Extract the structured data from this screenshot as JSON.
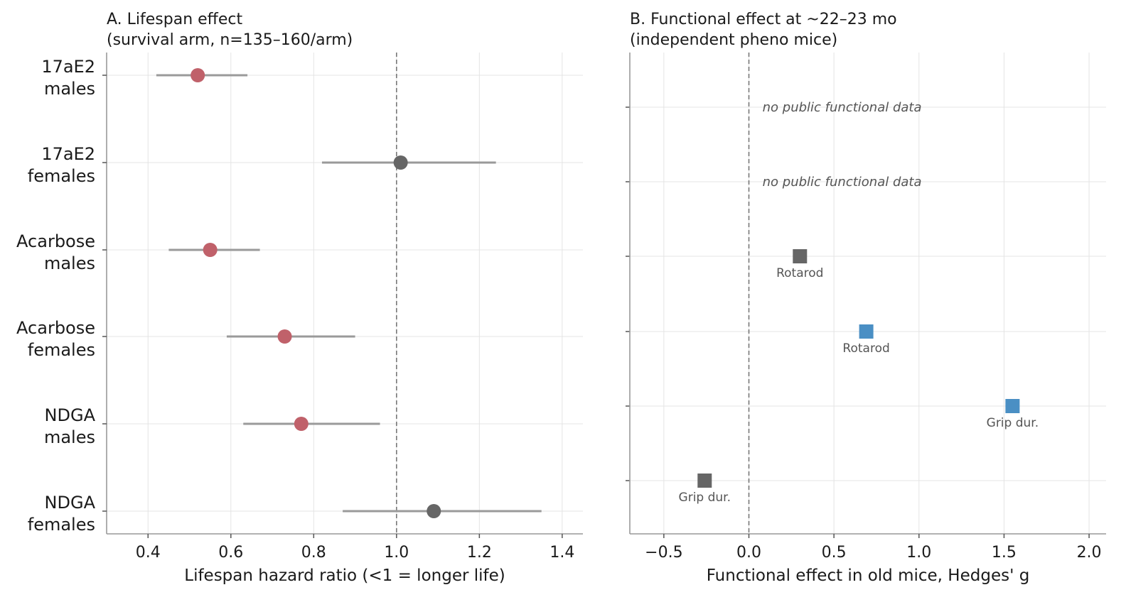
{
  "chart_data": [
    {
      "type": "scatter",
      "subtype": "forest-plot",
      "title_line1": "A. Lifespan effect",
      "title_line2": "(survival arm, n=135–160/arm)",
      "xlabel": "Lifespan hazard ratio (<1 = longer life)",
      "xlim": [
        0.3,
        1.45
      ],
      "xticks": [
        0.4,
        0.6,
        0.8,
        1.0,
        1.2,
        1.4
      ],
      "xtick_labels": [
        "0.4",
        "0.6",
        "0.8",
        "1.0",
        "1.2",
        "1.4"
      ],
      "reference_line": 1.0,
      "grid": true,
      "colors": {
        "significant": "#c0616a",
        "not_significant": "#666666",
        "ci": "#9a9a9a"
      },
      "rows": [
        {
          "line1": "17aE2",
          "line2": "males",
          "hr": 0.52,
          "lo": 0.42,
          "hi": 0.64,
          "significant": true
        },
        {
          "line1": "17aE2",
          "line2": "females",
          "hr": 1.01,
          "lo": 0.82,
          "hi": 1.24,
          "significant": false
        },
        {
          "line1": "Acarbose",
          "line2": "males",
          "hr": 0.55,
          "lo": 0.45,
          "hi": 0.67,
          "significant": true
        },
        {
          "line1": "Acarbose",
          "line2": "females",
          "hr": 0.73,
          "lo": 0.59,
          "hi": 0.9,
          "significant": true
        },
        {
          "line1": "NDGA",
          "line2": "males",
          "hr": 0.77,
          "lo": 0.63,
          "hi": 0.96,
          "significant": true
        },
        {
          "line1": "NDGA",
          "line2": "females",
          "hr": 1.09,
          "lo": 0.87,
          "hi": 1.35,
          "significant": false
        }
      ]
    },
    {
      "type": "scatter",
      "title_line1": "B. Functional effect at ~22–23 mo",
      "title_line2": "(independent pheno mice)",
      "xlabel": "Functional effect in old mice, Hedges' g",
      "xlim": [
        -0.7,
        2.1
      ],
      "xticks": [
        -0.5,
        0.0,
        0.5,
        1.0,
        1.5,
        2.0
      ],
      "xtick_labels": [
        "−0.5",
        "0.0",
        "0.5",
        "1.0",
        "1.5",
        "2.0"
      ],
      "reference_line": 0.0,
      "grid": true,
      "colors": {
        "positive": "#4a8fc4",
        "neutral": "#666666"
      },
      "note_x": 0.08,
      "rows": [
        {
          "note": "no public functional data"
        },
        {
          "note": "no public functional data"
        },
        {
          "g": 0.3,
          "label": "Rotarod",
          "color": "#666666"
        },
        {
          "g": 0.69,
          "label": "Rotarod",
          "color": "#4a8fc4"
        },
        {
          "g": 1.55,
          "label": "Grip dur.",
          "color": "#4a8fc4"
        },
        {
          "g": -0.26,
          "label": "Grip dur.",
          "color": "#666666"
        }
      ]
    }
  ]
}
